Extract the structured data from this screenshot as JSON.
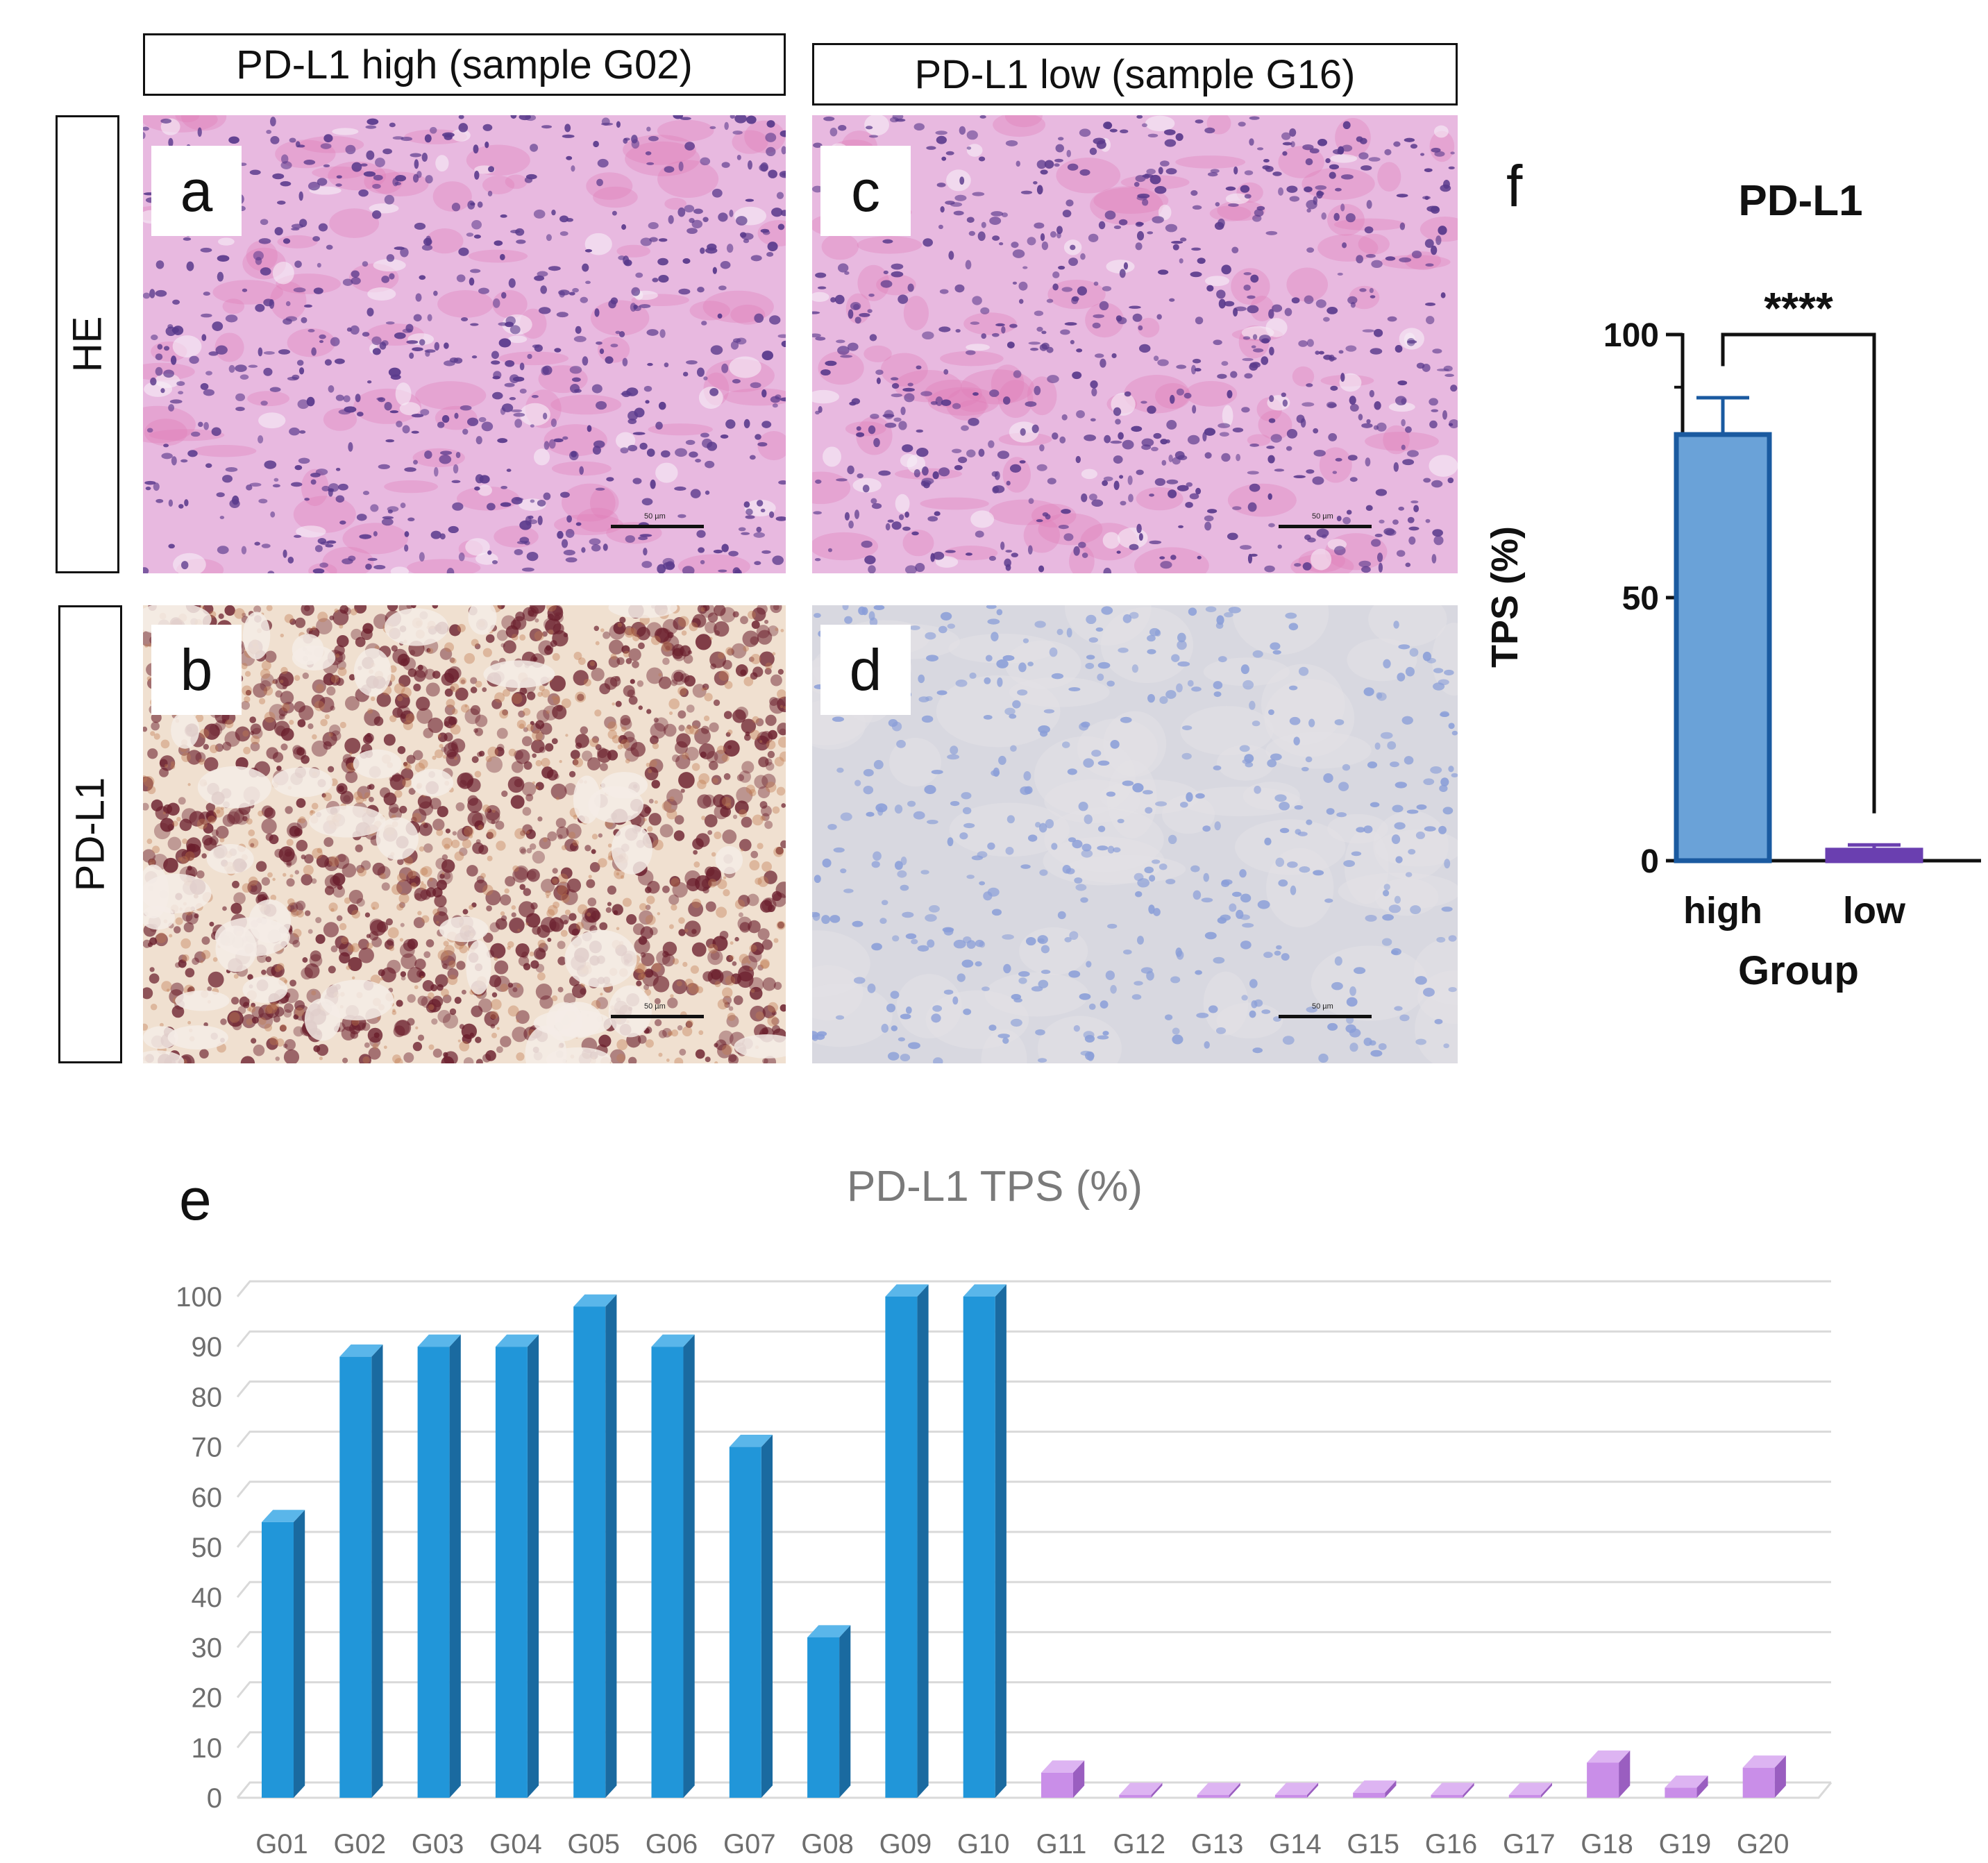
{
  "headers": {
    "left": "PD-L1 high (sample G02)",
    "right": "PD-L1 low (sample G16)"
  },
  "row_labels": {
    "he": "HE",
    "pdl1": "PD-L1"
  },
  "panel_labels": {
    "a": "a",
    "b": "b",
    "c": "c",
    "d": "d",
    "e": "e",
    "f": "f"
  },
  "scale_bar_text": "50 µm",
  "colors": {
    "he_background": "#e8b9e0",
    "he_nuclei": "#5a3a8c",
    "he_eosin": "#e07fb8",
    "ihc_high_background": "#f0e0d0",
    "ihc_high_stain": "#6a1e2c",
    "ihc_low_background": "#d8d8e0",
    "ihc_low_nuclei": "#8a9ed8",
    "bar_f_high": "#6aa2d8",
    "bar_f_high_edge": "#1a5aa0",
    "bar_f_low": "#6a3fb0",
    "bar_e_high": "#2196d9",
    "bar_e_high_side": "#1a6aa0",
    "bar_e_low": "#c98ee8",
    "bar_e_low_side": "#9a5ec0"
  },
  "chart_data": [
    {
      "id": "f",
      "type": "bar",
      "title": "PD-L1",
      "xlabel": "Group",
      "ylabel": "TPS (%)",
      "categories": [
        "high",
        "low"
      ],
      "values": [
        81,
        2
      ],
      "error_upper": [
        88,
        3
      ],
      "ylim": [
        0,
        100
      ],
      "yticks": [
        0,
        50,
        100
      ],
      "significance": "****"
    },
    {
      "id": "e",
      "type": "bar",
      "title": "PD-L1 TPS (%)",
      "xlabel": "",
      "ylabel": "",
      "categories": [
        "G01",
        "G02",
        "G03",
        "G04",
        "G05",
        "G06",
        "G07",
        "G08",
        "G09",
        "G10",
        "G11",
        "G12",
        "G13",
        "G14",
        "G15",
        "G16",
        "G17",
        "G18",
        "G19",
        "G20"
      ],
      "values": [
        55,
        88,
        90,
        90,
        98,
        90,
        70,
        32,
        100,
        100,
        5,
        0,
        0,
        0,
        1,
        0,
        0,
        7,
        2,
        6
      ],
      "ylim": [
        0,
        100
      ],
      "yticks": [
        0,
        10,
        20,
        30,
        40,
        50,
        60,
        70,
        80,
        90,
        100
      ],
      "grid": true
    }
  ]
}
